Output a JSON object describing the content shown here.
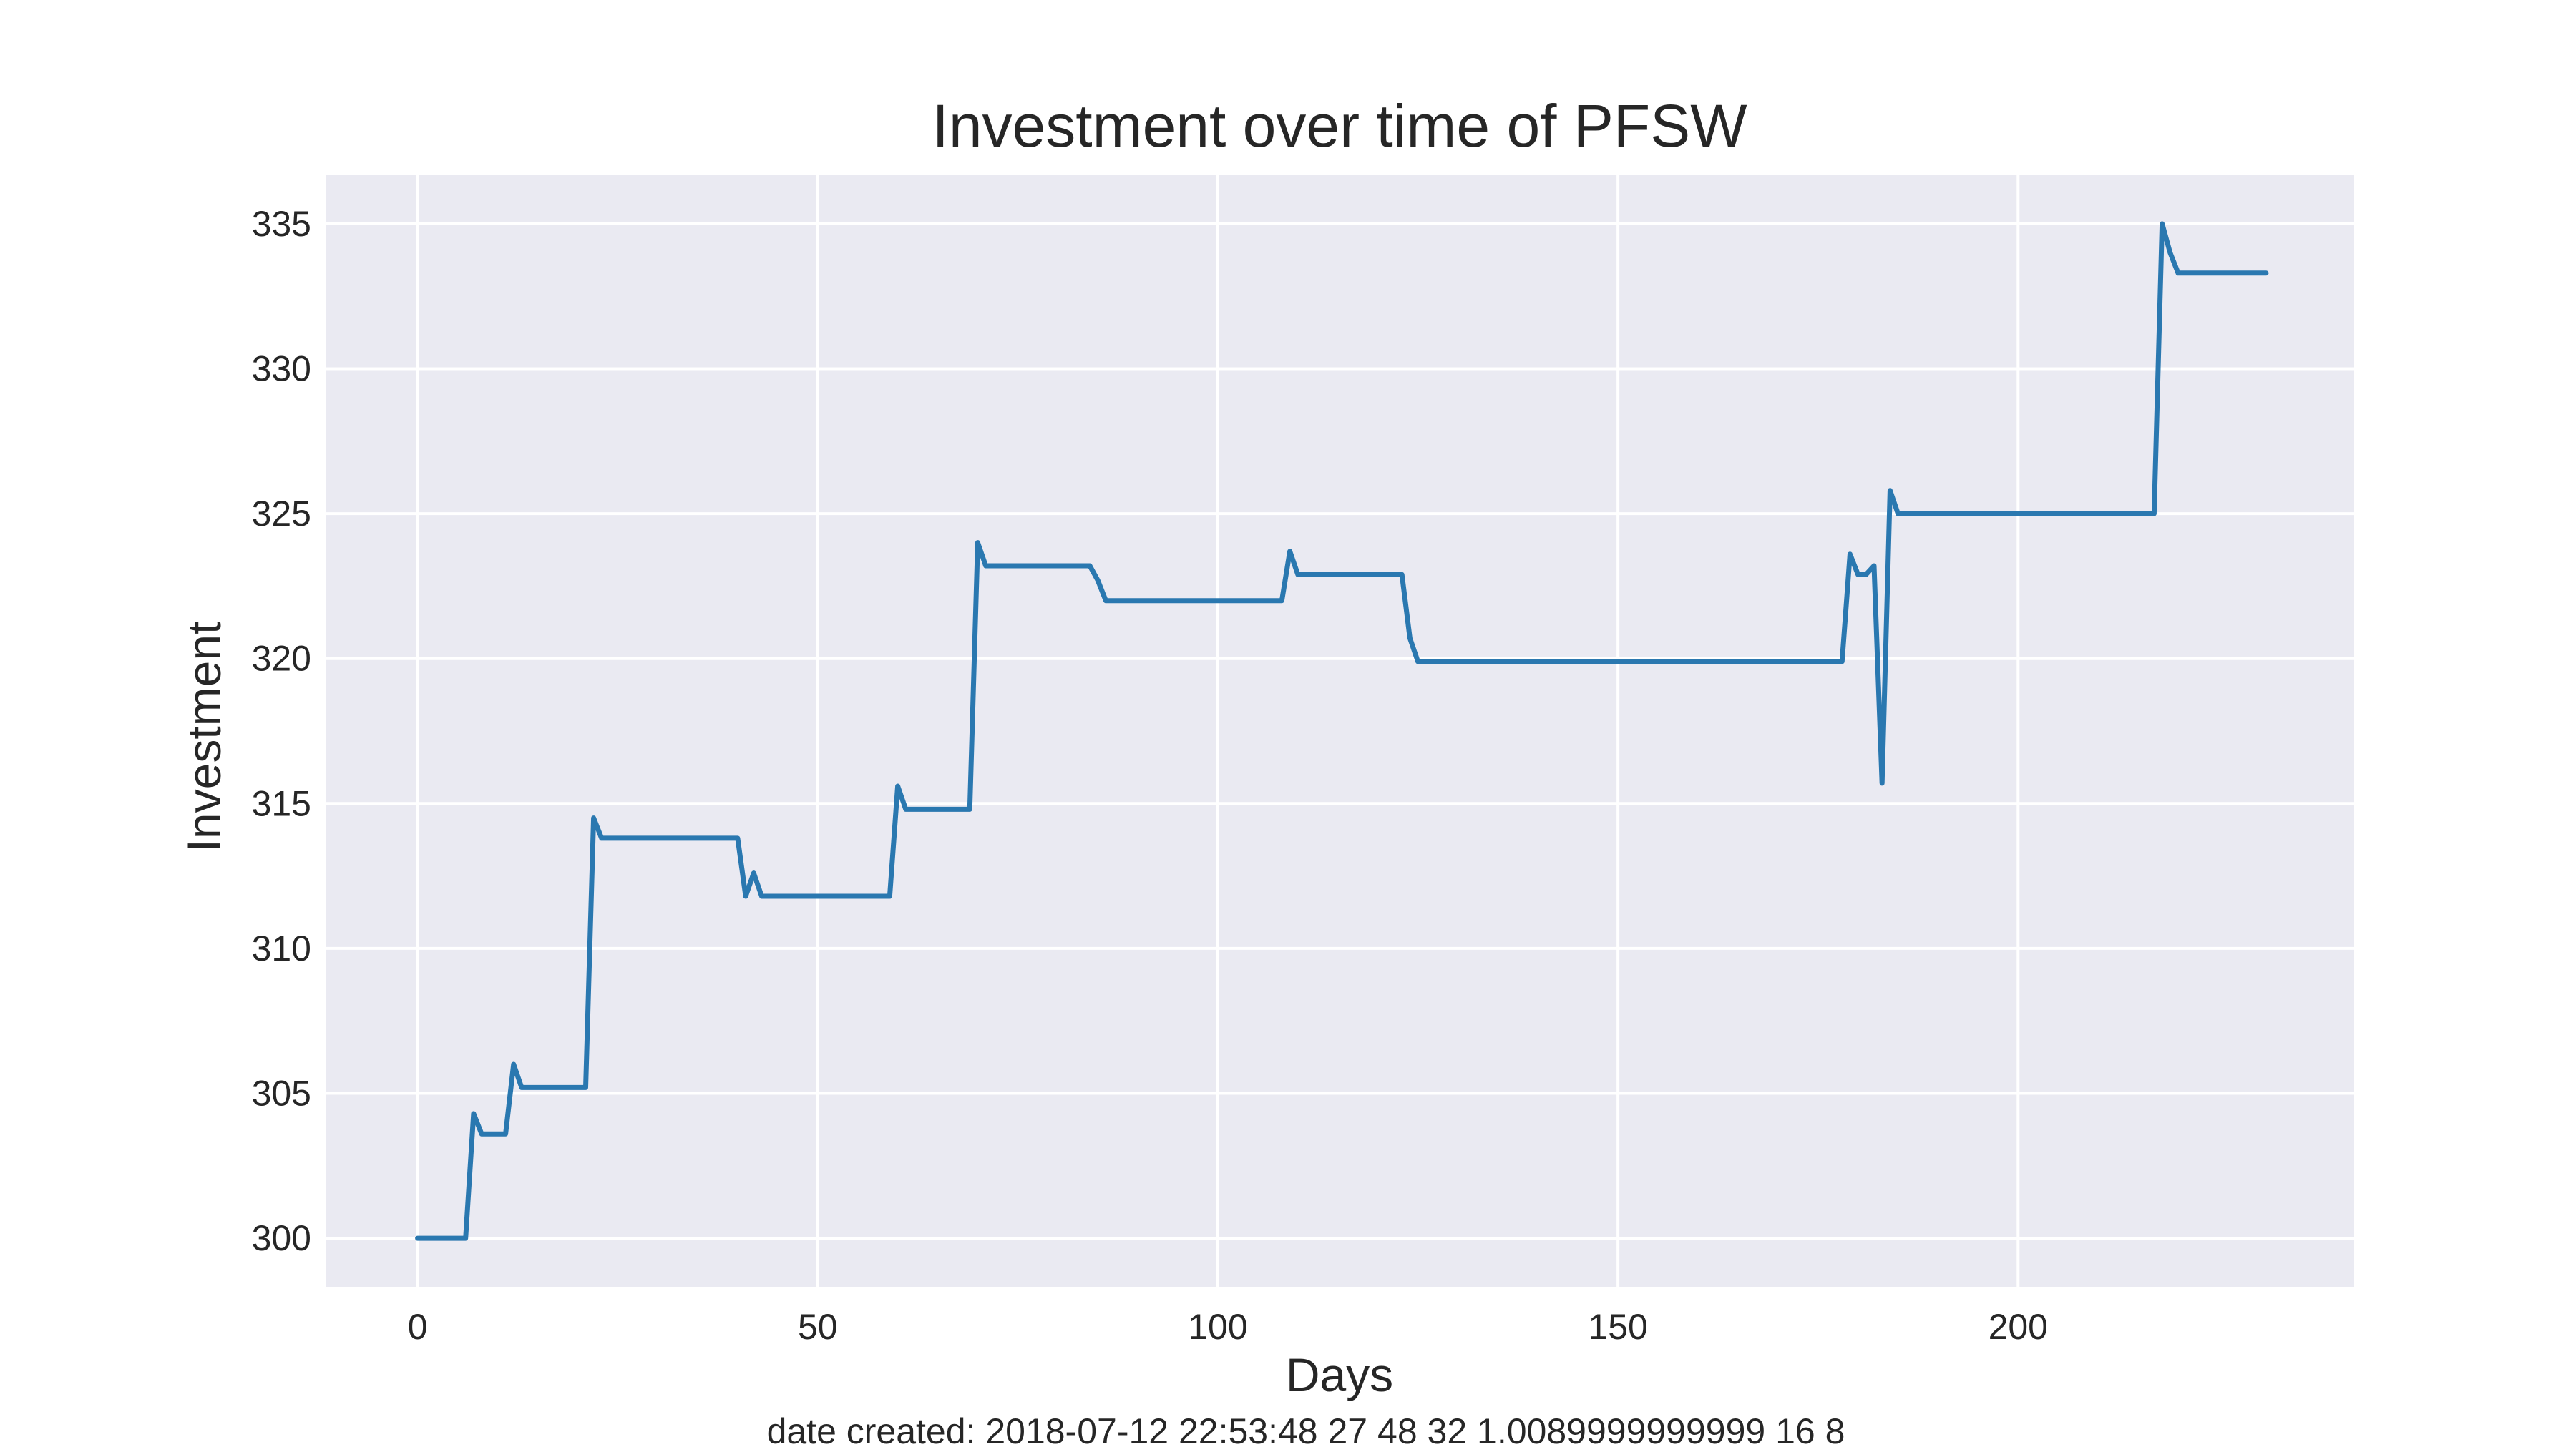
{
  "chart_data": {
    "type": "line",
    "title": "Investment over time of PFSW",
    "xlabel": "Days",
    "ylabel": "Investment",
    "footer": "date created: 2018-07-12 22:53:48 27 48 32 1.0089999999999 16 8",
    "xlim": [
      -11.5,
      242
    ],
    "ylim": [
      298.3,
      336.7
    ],
    "xticks": [
      0,
      50,
      100,
      150,
      200
    ],
    "yticks": [
      300,
      305,
      310,
      315,
      320,
      325,
      330,
      335
    ],
    "xtick_labels": [
      "0",
      "50",
      "100",
      "150",
      "200"
    ],
    "ytick_labels": [
      "300",
      "305",
      "310",
      "315",
      "320",
      "325",
      "330",
      "335"
    ],
    "grid": true,
    "line_color": "#2a78b0",
    "series": [
      {
        "name": "",
        "points": [
          [
            0,
            300.0
          ],
          [
            6,
            300.0
          ],
          [
            7,
            304.3
          ],
          [
            8,
            303.6
          ],
          [
            11,
            303.6
          ],
          [
            12,
            306.0
          ],
          [
            13,
            305.2
          ],
          [
            21,
            305.2
          ],
          [
            22,
            314.5
          ],
          [
            23,
            313.8
          ],
          [
            40,
            313.8
          ],
          [
            41,
            311.8
          ],
          [
            42,
            312.6
          ],
          [
            43,
            311.8
          ],
          [
            59,
            311.8
          ],
          [
            60,
            315.6
          ],
          [
            61,
            314.8
          ],
          [
            69,
            314.8
          ],
          [
            70,
            324.0
          ],
          [
            71,
            323.2
          ],
          [
            84,
            323.2
          ],
          [
            85,
            322.7
          ],
          [
            86,
            322.0
          ],
          [
            108,
            322.0
          ],
          [
            109,
            323.7
          ],
          [
            110,
            322.9
          ],
          [
            123,
            322.9
          ],
          [
            124,
            320.7
          ],
          [
            125,
            319.9
          ],
          [
            178,
            319.9
          ],
          [
            179,
            323.6
          ],
          [
            180,
            322.9
          ],
          [
            181,
            322.9
          ],
          [
            182,
            323.2
          ],
          [
            183,
            315.7
          ],
          [
            184,
            325.8
          ],
          [
            185,
            325.0
          ],
          [
            217,
            325.0
          ],
          [
            218,
            335.0
          ],
          [
            219,
            334.0
          ],
          [
            220,
            333.3
          ],
          [
            231,
            333.3
          ]
        ]
      }
    ]
  }
}
